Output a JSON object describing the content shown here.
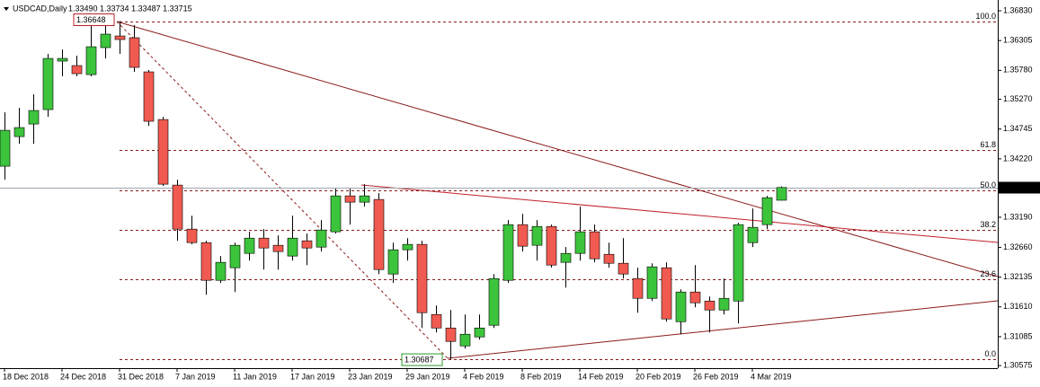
{
  "chart_data": {
    "type": "candlestick",
    "title": "USDCAD,Daily",
    "header_values": "1.33490 1.33734 1.33487 1.33715",
    "categories": [
      "18 Dec 2018",
      null,
      null,
      null,
      "24 Dec 2018",
      null,
      null,
      null,
      "31 Dec 2018",
      null,
      null,
      null,
      "7 Jan 2019",
      null,
      null,
      null,
      "11 Jan 2019",
      null,
      null,
      null,
      "17 Jan 2019",
      null,
      null,
      null,
      "23 Jan 2019",
      null,
      null,
      null,
      "29 Jan 2019",
      null,
      null,
      null,
      "4 Feb 2019",
      null,
      null,
      null,
      "8 Feb 2019",
      null,
      null,
      null,
      "14 Feb 2019",
      null,
      null,
      null,
      "20 Feb 2019",
      null,
      null,
      null,
      "26 Feb 2019",
      null,
      null,
      null,
      "4 Mar 2019",
      null,
      null
    ],
    "open": [
      1.3409,
      1.34612,
      1.34834,
      1.35088,
      1.35943,
      1.35864,
      1.35705,
      1.36181,
      1.36386,
      1.36355,
      1.35753,
      1.34913,
      1.33757,
      1.32981,
      1.32743,
      1.32078,
      1.323,
      1.32553,
      1.32822,
      1.32696,
      1.32506,
      1.32775,
      1.32664,
      1.32934,
      1.33567,
      1.33456,
      1.33504,
      1.32189,
      1.32617,
      1.32712,
      1.31476,
      1.31238,
      1.30922,
      1.3108,
      1.31286,
      1.32078,
      1.3306,
      1.32696,
      1.33028,
      1.32395,
      1.32553,
      1.32934,
      1.32537,
      1.32379,
      1.3211,
      1.31761,
      1.323,
      1.31349,
      1.31872,
      1.31713,
      1.31555,
      1.31713,
      1.32743,
      1.3306,
      1.3349
    ],
    "high": [
      1.3504,
      1.35119,
      1.35357,
      1.3607,
      1.36149,
      1.36038,
      1.36624,
      1.36703,
      1.36648,
      1.36577,
      1.35785,
      1.34961,
      1.33852,
      1.33218,
      1.32775,
      1.32506,
      1.32743,
      1.32934,
      1.32981,
      1.3287,
      1.33218,
      1.32902,
      1.33139,
      1.33694,
      1.33694,
      1.33773,
      1.33614,
      1.32743,
      1.32822,
      1.32775,
      1.31634,
      1.31555,
      1.31476,
      1.31476,
      1.32189,
      1.33139,
      1.3325,
      1.33139,
      1.3306,
      1.32664,
      1.33377,
      1.3306,
      1.32743,
      1.32822,
      1.323,
      1.32379,
      1.32395,
      1.3192,
      1.32347,
      1.31793,
      1.3211,
      1.33092,
      1.33345,
      1.33567,
      1.33734
    ],
    "low": [
      1.33852,
      1.34486,
      1.34486,
      1.34961,
      1.35674,
      1.35674,
      1.35674,
      1.3599,
      1.3607,
      1.35753,
      1.34802,
      1.33741,
      1.32775,
      1.32712,
      1.31824,
      1.32031,
      1.31872,
      1.32426,
      1.32268,
      1.32268,
      1.32426,
      1.32347,
      1.32585,
      1.32902,
      1.3306,
      1.33377,
      1.32189,
      1.32031,
      1.32426,
      1.31238,
      1.31159,
      1.30687,
      1.30874,
      1.31033,
      1.31238,
      1.32031,
      1.32585,
      1.32426,
      1.323,
      1.31951,
      1.32426,
      1.32395,
      1.323,
      1.3211,
      1.31508,
      1.31713,
      1.31349,
      1.31128,
      1.31603,
      1.31159,
      1.31476,
      1.31318,
      1.32664,
      1.32981,
      1.33487
    ],
    "close": [
      1.34723,
      1.34771,
      1.35072,
      1.3599,
      1.3599,
      1.35721,
      1.36196,
      1.36418,
      1.36323,
      1.35832,
      1.34882,
      1.33773,
      1.32981,
      1.32743,
      1.32078,
      1.32395,
      1.32696,
      1.32822,
      1.32648,
      1.32585,
      1.32822,
      1.32648,
      1.32965,
      1.33567,
      1.33456,
      1.33567,
      1.32268,
      1.32617,
      1.32712,
      1.31508,
      1.31238,
      1.31001,
      1.31128,
      1.31238,
      1.3211,
      1.3306,
      1.3268,
      1.33028,
      1.32347,
      1.32553,
      1.32934,
      1.32458,
      1.32379,
      1.32189,
      1.31761,
      1.32316,
      1.31397,
      1.31872,
      1.31682,
      1.31555,
      1.31761,
      1.3306,
      1.33013,
      1.33535,
      1.33715
    ],
    "up_color": "#3cc43c",
    "down_color": "#f05a50",
    "ylim": [
      1.3053,
      1.3702
    ],
    "yticks": [
      {
        "value": 1.3683,
        "label": "1.36830"
      },
      1.36305,
      {
        "value": 1.3578,
        "label": "1.35780"
      },
      {
        "value": 1.3527,
        "label": "1.35270"
      },
      1.34745,
      {
        "value": 1.3422,
        "label": "1.34220"
      },
      {
        "value": 1.3319,
        "label": "1.33190"
      },
      {
        "value": 1.3266,
        "label": "1.32660"
      },
      1.32135,
      {
        "value": 1.3161,
        "label": "1.31610"
      },
      1.31085,
      1.30575
    ],
    "fib_levels": [
      {
        "value": 100,
        "label": "100.0"
      },
      61.8,
      {
        "value": 50,
        "label": "50.0"
      },
      38.2,
      23.6,
      {
        "value": 0,
        "label": "0.0"
      }
    ],
    "fib_color": "#8b1a1a"
  }
}
